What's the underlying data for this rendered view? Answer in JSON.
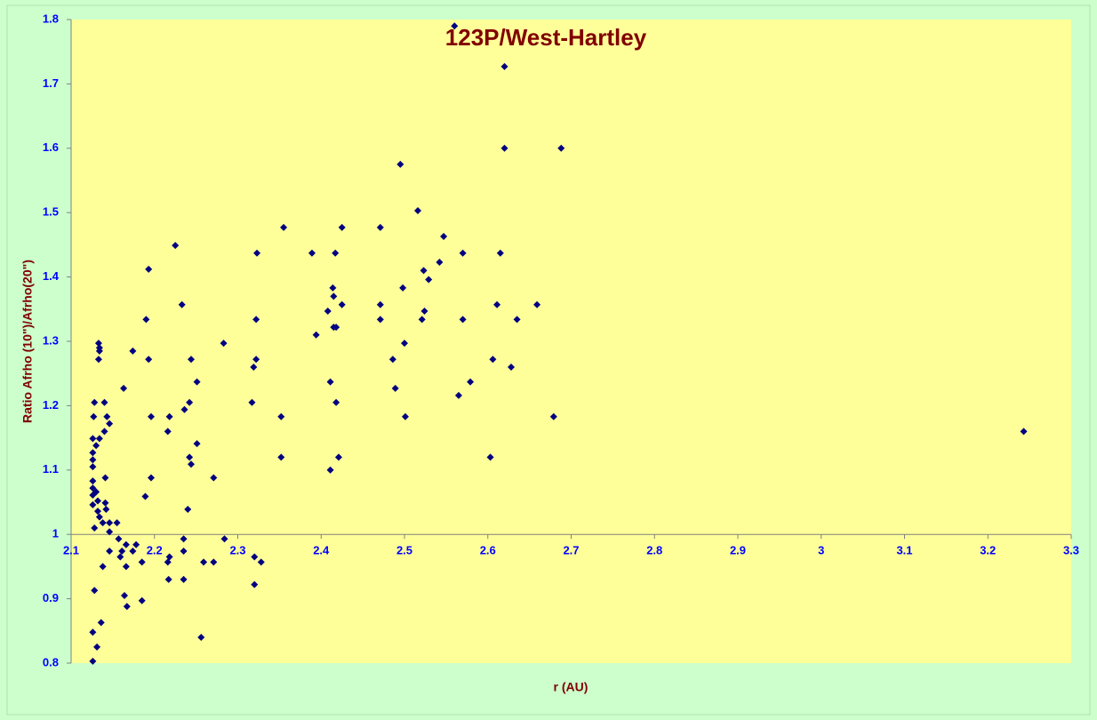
{
  "chart_data": {
    "type": "scatter",
    "title": "123P/West-Hartley",
    "x_label": "r (AU)",
    "y_label": "Ratio Afrho (10\")/Afrho(20\")",
    "xlim": [
      2.1,
      3.3
    ],
    "ylim": [
      0.8,
      1.8
    ],
    "xticks": [
      2.1,
      2.2,
      2.3,
      2.4,
      2.5,
      2.6,
      2.7,
      2.8,
      2.9,
      3,
      3.1,
      3.2,
      3.3
    ],
    "yticks": [
      0.8,
      0.9,
      1,
      1.1,
      1.2,
      1.3,
      1.4,
      1.5,
      1.6,
      1.7,
      1.8
    ],
    "color": "#000080",
    "x": [
      2.56,
      2.62,
      2.62,
      2.688,
      2.495,
      2.516,
      2.225,
      2.355,
      2.425,
      2.471,
      2.547,
      2.323,
      2.389,
      2.417,
      2.57,
      2.615,
      2.542,
      2.193,
      2.523,
      2.529,
      2.414,
      2.498,
      2.415,
      2.233,
      2.425,
      2.471,
      2.611,
      2.659,
      2.408,
      2.524,
      2.19,
      2.322,
      2.471,
      2.521,
      2.57,
      2.635,
      2.415,
      2.418,
      2.394,
      2.133,
      2.134,
      2.283,
      2.5,
      2.134,
      2.174,
      2.193,
      2.133,
      2.244,
      2.322,
      2.486,
      2.606,
      2.319,
      2.628,
      2.251,
      2.411,
      2.579,
      2.163,
      2.489,
      2.565,
      2.128,
      2.14,
      2.242,
      2.317,
      2.418,
      2.236,
      2.127,
      2.143,
      2.196,
      2.218,
      2.352,
      2.501,
      2.679,
      2.146,
      2.14,
      2.216,
      3.243,
      2.134,
      2.126,
      2.13,
      2.251,
      2.126,
      2.242,
      2.352,
      2.421,
      2.603,
      2.126,
      2.244,
      2.411,
      2.126,
      2.196,
      2.271,
      2.141,
      2.126,
      2.126,
      2.13,
      2.126,
      2.189,
      2.132,
      2.126,
      2.141,
      2.24,
      2.132,
      2.142,
      2.134,
      2.138,
      2.146,
      2.155,
      2.128,
      2.146,
      2.157,
      2.235,
      2.284,
      2.166,
      2.178,
      2.146,
      2.161,
      2.174,
      2.235,
      2.218,
      2.32,
      2.159,
      2.185,
      2.216,
      2.259,
      2.271,
      2.328,
      2.138,
      2.166,
      2.217,
      2.235,
      2.32,
      2.128,
      2.164,
      2.185,
      2.167,
      2.136,
      2.126,
      2.256,
      2.131,
      2.126
    ],
    "values": [
      1.79,
      1.727,
      1.6,
      1.6,
      1.575,
      1.503,
      1.449,
      1.477,
      1.477,
      1.477,
      1.463,
      1.437,
      1.437,
      1.437,
      1.437,
      1.437,
      1.423,
      1.412,
      1.41,
      1.396,
      1.383,
      1.383,
      1.37,
      1.357,
      1.357,
      1.357,
      1.357,
      1.357,
      1.347,
      1.347,
      1.334,
      1.334,
      1.334,
      1.334,
      1.334,
      1.334,
      1.322,
      1.322,
      1.31,
      1.297,
      1.29,
      1.297,
      1.297,
      1.285,
      1.285,
      1.272,
      1.272,
      1.272,
      1.272,
      1.272,
      1.272,
      1.26,
      1.26,
      1.237,
      1.237,
      1.237,
      1.227,
      1.227,
      1.216,
      1.205,
      1.205,
      1.205,
      1.205,
      1.205,
      1.194,
      1.183,
      1.183,
      1.183,
      1.183,
      1.183,
      1.183,
      1.183,
      1.172,
      1.16,
      1.16,
      1.16,
      1.149,
      1.149,
      1.138,
      1.141,
      1.127,
      1.12,
      1.12,
      1.12,
      1.12,
      1.116,
      1.109,
      1.1,
      1.105,
      1.088,
      1.088,
      1.088,
      1.083,
      1.072,
      1.066,
      1.061,
      1.059,
      1.052,
      1.046,
      1.049,
      1.039,
      1.036,
      1.039,
      1.027,
      1.018,
      1.018,
      1.018,
      1.01,
      1.004,
      0.993,
      0.993,
      0.993,
      0.984,
      0.984,
      0.974,
      0.974,
      0.974,
      0.974,
      0.965,
      0.965,
      0.965,
      0.957,
      0.957,
      0.957,
      0.957,
      0.957,
      0.95,
      0.95,
      0.93,
      0.93,
      0.922,
      0.913,
      0.905,
      0.897,
      0.888,
      0.863,
      0.848,
      0.84,
      0.825,
      0.803
    ]
  }
}
